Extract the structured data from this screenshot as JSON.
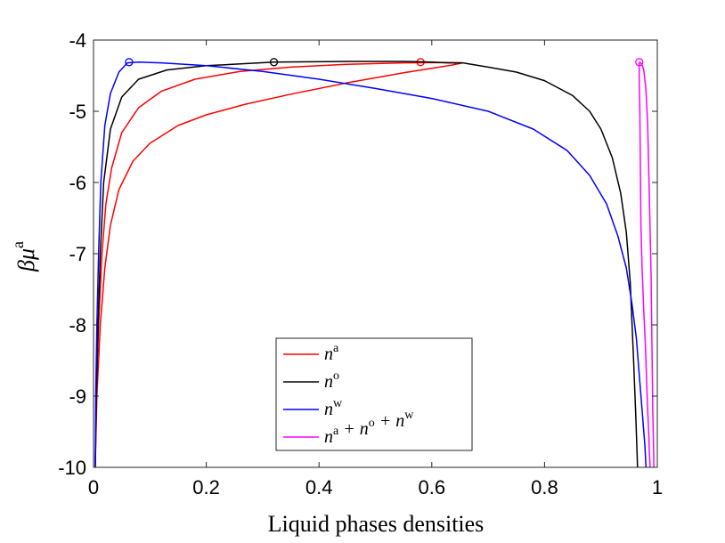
{
  "chart_data": {
    "type": "line",
    "title": "",
    "xlabel": "Liquid phases densities",
    "ylabel": "βμ",
    "ylabel_sup": "a",
    "xlim": [
      0,
      1
    ],
    "ylim": [
      -10,
      -4
    ],
    "xticks": [
      "0",
      "0.2",
      "0.4",
      "0.6",
      "0.8",
      "1"
    ],
    "yticks": [
      "-10",
      "-9",
      "-8",
      "-7",
      "-6",
      "-5",
      "-4"
    ],
    "grid": false,
    "legend_position": "bottom-center",
    "series": [
      {
        "name": "n",
        "sup": "a",
        "color": "#ff0000",
        "branches": [
          {
            "x": [
              0.003,
              0.006,
              0.012,
              0.02,
              0.03,
              0.045,
              0.07,
              0.1,
              0.15,
              0.2,
              0.27,
              0.35,
              0.45,
              0.55,
              0.63,
              0.655
            ],
            "y": [
              -10,
              -9,
              -8,
              -7.2,
              -6.6,
              -6.1,
              -5.7,
              -5.45,
              -5.2,
              -5.05,
              -4.9,
              -4.76,
              -4.6,
              -4.46,
              -4.36,
              -4.32
            ]
          },
          {
            "x": [
              0.003,
              0.005,
              0.009,
              0.015,
              0.022,
              0.032,
              0.05,
              0.08,
              0.12,
              0.18,
              0.26,
              0.35,
              0.45,
              0.55,
              0.62,
              0.655
            ],
            "y": [
              -10,
              -9,
              -8,
              -7,
              -6.3,
              -5.8,
              -5.3,
              -4.95,
              -4.72,
              -4.55,
              -4.44,
              -4.38,
              -4.34,
              -4.32,
              -4.315,
              -4.32
            ]
          }
        ],
        "critical_point": {
          "x": 0.58,
          "y": -4.31
        }
      },
      {
        "name": "n",
        "sup": "o",
        "color": "#000000",
        "branches": [
          {
            "x": [
              0.003,
              0.005,
              0.008,
              0.012,
              0.018,
              0.03,
              0.05,
              0.08,
              0.13,
              0.2,
              0.32,
              0.45,
              0.55,
              0.6,
              0.63,
              0.655
            ],
            "y": [
              -10,
              -9,
              -8,
              -7,
              -6,
              -5.25,
              -4.8,
              -4.55,
              -4.42,
              -4.36,
              -4.31,
              -4.3,
              -4.3,
              -4.31,
              -4.32,
              -4.32
            ]
          },
          {
            "x": [
              0.655,
              0.7,
              0.75,
              0.8,
              0.85,
              0.88,
              0.9,
              0.92,
              0.935,
              0.945,
              0.952,
              0.958,
              0.962,
              0.965
            ],
            "y": [
              -4.32,
              -4.38,
              -4.45,
              -4.57,
              -4.78,
              -5.0,
              -5.25,
              -5.65,
              -6.15,
              -6.7,
              -7.4,
              -8.5,
              -9.3,
              -10
            ]
          }
        ],
        "critical_point": {
          "x": 0.32,
          "y": -4.31
        }
      },
      {
        "name": "n",
        "sup": "w",
        "color": "#0000ff",
        "branches": [
          {
            "x": [
              0.003,
              0.004,
              0.006,
              0.009,
              0.013,
              0.02,
              0.03,
              0.045,
              0.06,
              0.08,
              0.12,
              0.2,
              0.3,
              0.4,
              0.5,
              0.6,
              0.7,
              0.78,
              0.84,
              0.88,
              0.91,
              0.93,
              0.945,
              0.955,
              0.963,
              0.968,
              0.972,
              0.975,
              0.978,
              0.98
            ],
            "y": [
              -10,
              -9,
              -8,
              -7,
              -6,
              -5.2,
              -4.75,
              -4.45,
              -4.32,
              -4.31,
              -4.32,
              -4.36,
              -4.44,
              -4.55,
              -4.68,
              -4.82,
              -5.0,
              -5.25,
              -5.55,
              -5.9,
              -6.3,
              -6.75,
              -7.2,
              -7.7,
              -8.2,
              -8.7,
              -9.1,
              -9.4,
              -9.7,
              -10
            ]
          }
        ],
        "critical_point": {
          "x": 0.063,
          "y": -4.31
        }
      },
      {
        "name": "n",
        "sup": "a+o+w",
        "color": "#ff00ff",
        "branches": [
          {
            "x": [
              0.968,
              0.968,
              0.969,
              0.97,
              0.971,
              0.973,
              0.976,
              0.979,
              0.981,
              0.983,
              0.985,
              0.986,
              0.987,
              0.987
            ],
            "y": [
              -4.31,
              -4.6,
              -5.0,
              -5.8,
              -6.6,
              -7.2,
              -7.8,
              -8.3,
              -8.8,
              -9.2,
              -9.55,
              -9.8,
              -9.95,
              -10
            ]
          },
          {
            "x": [
              0.968,
              0.972,
              0.976,
              0.98,
              0.983,
              0.985,
              0.987,
              0.989,
              0.99,
              0.991,
              0.992,
              0.993,
              0.994
            ],
            "y": [
              -4.31,
              -4.33,
              -4.42,
              -4.7,
              -5.2,
              -5.9,
              -6.6,
              -7.3,
              -8.0,
              -8.6,
              -9.2,
              -9.6,
              -10
            ]
          }
        ],
        "critical_point": {
          "x": 0.968,
          "y": -4.31
        }
      }
    ]
  }
}
